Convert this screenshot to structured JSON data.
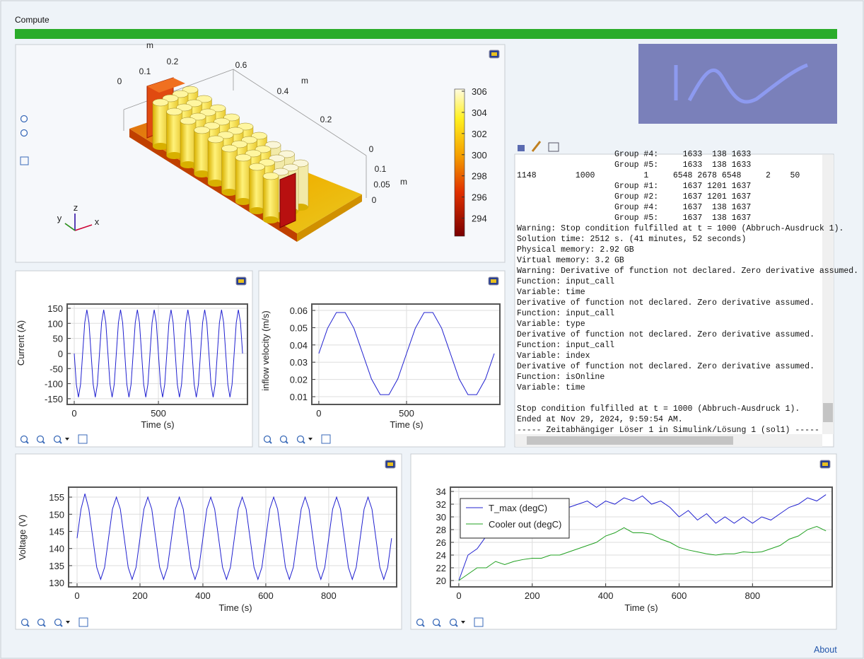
{
  "header": {
    "button": "Compute"
  },
  "model_view": {
    "axis_labels": [
      "m",
      "0",
      "0.1",
      "0.2",
      "0.6",
      "m",
      "0.4",
      "0.2",
      "0",
      "0.1",
      "0.05",
      "m",
      "0"
    ],
    "triad": [
      "z",
      "y",
      "x"
    ],
    "colorbar_range": [
      292.3,
      306.2
    ],
    "colorbar_ticks": [
      294,
      296,
      298,
      300,
      302,
      304,
      306
    ]
  },
  "log": {
    "lines": [
      "                    Group #4:     1633  138 1633",
      "                    Group #5:     1633  138 1633",
      "1148        1000          1     6548 2678 6548     2    50",
      "                    Group #1:     1637 1201 1637",
      "                    Group #2:     1637 1201 1637",
      "                    Group #4:     1637  138 1637",
      "                    Group #5:     1637  138 1637",
      "Warning: Stop condition fulfilled at t = 1000 (Abbruch-Ausdruck 1).",
      "Solution time: 2512 s. (41 minutes, 52 seconds)",
      "Physical memory: 2.92 GB",
      "Virtual memory: 3.2 GB",
      "Warning: Derivative of function not declared. Zero derivative assumed.",
      "Function: input_call",
      "Variable: time",
      "Derivative of function not declared. Zero derivative assumed.",
      "Function: input_call",
      "Variable: type",
      "Derivative of function not declared. Zero derivative assumed.",
      "Function: input_call",
      "Variable: index",
      "Derivative of function not declared. Zero derivative assumed.",
      "Function: isOnline",
      "Variable: time"
    ],
    "summary": [
      "Stop condition fulfilled at t = 1000 (Abbruch-Ausdruck 1).",
      "Ended at Nov 29, 2024, 9:59:54 AM.",
      "----- Zeitabhängiger Löser 1 in Simulink/Lösung 1 (sol1) -----"
    ]
  },
  "chart_data": [
    {
      "type": "line",
      "x_label": "Time (s)",
      "y_label": "Current (A)",
      "grid": true,
      "xlim": [
        -42,
        1029
      ],
      "ylim": [
        -169,
        164
      ],
      "xticks": [
        0,
        500
      ],
      "yticks": [
        -150,
        -100,
        -50,
        0,
        50,
        100,
        150
      ],
      "x": [
        0,
        12.5,
        25,
        37.5,
        50,
        62.5,
        75,
        87.5,
        100,
        112.5,
        125,
        137.5,
        150,
        162.5,
        175,
        187.5,
        200,
        212.5,
        225,
        237.5,
        250,
        262.5,
        275,
        287.5,
        300,
        312.5,
        325,
        337.5,
        350,
        362.5,
        375,
        387.5,
        400,
        412.5,
        425,
        437.5,
        450,
        462.5,
        475,
        487.5,
        500,
        512.5,
        525,
        537.5,
        550,
        562.5,
        575,
        587.5,
        600,
        612.5,
        625,
        637.5,
        650,
        662.5,
        675,
        687.5,
        700,
        712.5,
        725,
        737.5,
        750,
        762.5,
        775,
        787.5,
        800,
        812.5,
        825,
        837.5,
        850,
        862.5,
        875,
        887.5,
        900,
        912.5,
        925,
        937.5,
        950,
        962.5,
        975,
        987.5,
        1000
      ],
      "series": [
        {
          "color": "#2020d0",
          "values": [
            0,
            -102.5,
            -145,
            -102.5,
            0,
            102.5,
            145,
            102.5,
            0,
            -102.5,
            -145,
            -102.5,
            0,
            102.5,
            145,
            102.5,
            0,
            -102.5,
            -145,
            -102.5,
            0,
            102.5,
            145,
            102.5,
            0,
            -102.5,
            -145,
            -102.5,
            0,
            102.5,
            145,
            102.5,
            0,
            -102.5,
            -145,
            -102.5,
            0,
            102.5,
            145,
            102.5,
            0,
            -102.5,
            -145,
            -102.5,
            0,
            102.5,
            145,
            102.5,
            0,
            -102.5,
            -145,
            -102.5,
            0,
            102.5,
            145,
            102.5,
            0,
            -102.5,
            -145,
            -102.5,
            0,
            102.5,
            145,
            102.5,
            0,
            -102.5,
            -145,
            -102.5,
            0,
            102.5,
            145,
            102.5,
            0,
            -102.5,
            -145,
            -102.5,
            0,
            102.5,
            145,
            102.5,
            0
          ]
        }
      ]
    },
    {
      "type": "line",
      "x_label": "Time (s)",
      "y_label": "inflow velocity (m/s)",
      "grid": true,
      "xlim": [
        -40,
        1032
      ],
      "ylim": [
        0.0055,
        0.0637
      ],
      "xticks": [
        0,
        500
      ],
      "yticks": [
        0.01,
        0.02,
        0.03,
        0.04,
        0.05,
        0.06
      ],
      "x": [
        0,
        50,
        100,
        150,
        200,
        250,
        300,
        350,
        400,
        450,
        500,
        550,
        600,
        650,
        700,
        750,
        800,
        850,
        900,
        950,
        1000
      ],
      "series": [
        {
          "color": "#2020d0",
          "values": [
            0.035,
            0.0497,
            0.0588,
            0.0588,
            0.0497,
            0.035,
            0.0203,
            0.0112,
            0.0112,
            0.0203,
            0.035,
            0.0497,
            0.0588,
            0.0588,
            0.0497,
            0.035,
            0.0203,
            0.0112,
            0.0112,
            0.0203,
            0.035
          ]
        }
      ]
    },
    {
      "type": "line",
      "x_label": "Time (s)",
      "y_label": "Voltage (V)",
      "grid": true,
      "xlim": [
        -27,
        1016
      ],
      "ylim": [
        128.8,
        157.9
      ],
      "xticks": [
        0,
        200,
        400,
        600,
        800
      ],
      "yticks": [
        130,
        135,
        140,
        145,
        150,
        155
      ],
      "x": [
        0,
        12.5,
        25,
        37.5,
        50,
        62.5,
        75,
        87.5,
        100,
        112.5,
        125,
        137.5,
        150,
        162.5,
        175,
        187.5,
        200,
        212.5,
        225,
        237.5,
        250,
        262.5,
        275,
        287.5,
        300,
        312.5,
        325,
        337.5,
        350,
        362.5,
        375,
        387.5,
        400,
        412.5,
        425,
        437.5,
        450,
        462.5,
        475,
        487.5,
        500,
        512.5,
        525,
        537.5,
        550,
        562.5,
        575,
        587.5,
        600,
        612.5,
        625,
        637.5,
        650,
        662.5,
        675,
        687.5,
        700,
        712.5,
        725,
        737.5,
        750,
        762.5,
        775,
        787.5,
        800,
        812.5,
        825,
        837.5,
        850,
        862.5,
        875,
        887.5,
        900,
        912.5,
        925,
        937.5,
        950,
        962.5,
        975,
        987.5,
        1000
      ],
      "series": [
        {
          "color": "#2020d0",
          "values": [
            143,
            151.5,
            156,
            151.5,
            143,
            134.5,
            131,
            134.5,
            143,
            151.5,
            155,
            151.5,
            143,
            134.5,
            131,
            134.5,
            143,
            151.5,
            155,
            151.5,
            143,
            134.5,
            131,
            134.5,
            143,
            151.5,
            155,
            151.5,
            143,
            134.5,
            131,
            134.5,
            143,
            151.5,
            155,
            151.5,
            143,
            134.5,
            131,
            134.5,
            143,
            151.5,
            155,
            151.5,
            143,
            134.5,
            131,
            134.5,
            143,
            151.5,
            155,
            151.5,
            143,
            134.5,
            131,
            134.5,
            143,
            151.5,
            155,
            151.5,
            143,
            134.5,
            131,
            134.5,
            143,
            151.5,
            155,
            151.5,
            143,
            134.5,
            131,
            134.5,
            143,
            151.5,
            155,
            151.5,
            143,
            134.5,
            131,
            134.5,
            143
          ]
        }
      ]
    },
    {
      "type": "line",
      "x_label": "Time (s)",
      "grid": true,
      "legend": "upper left",
      "xlim": [
        -23,
        1017
      ],
      "ylim": [
        19,
        34.67
      ],
      "xticks": [
        0,
        200,
        400,
        600,
        800
      ],
      "yticks": [
        20,
        22,
        24,
        26,
        28,
        30,
        32,
        34
      ],
      "x": [
        0,
        25,
        50,
        75,
        100,
        125,
        150,
        175,
        200,
        225,
        250,
        275,
        300,
        325,
        350,
        375,
        400,
        425,
        450,
        475,
        500,
        525,
        550,
        575,
        600,
        625,
        650,
        675,
        700,
        725,
        750,
        775,
        800,
        825,
        850,
        875,
        900,
        925,
        950,
        975,
        1000
      ],
      "series": [
        {
          "name": "T_max (degC)",
          "color": "#2020d0",
          "values": [
            20,
            24,
            25,
            27,
            27.5,
            27,
            29,
            28,
            30,
            30.5,
            30,
            31,
            31.5,
            32,
            32.5,
            31.5,
            32.5,
            32,
            33,
            32.5,
            33.3,
            32,
            32.5,
            31.5,
            30,
            31,
            29.5,
            30.5,
            29,
            30,
            29,
            30,
            29,
            30,
            29.5,
            30.5,
            31.5,
            32,
            33,
            32.5,
            33.5
          ]
        },
        {
          "name": "Cooler out (degC)",
          "color": "#20a020",
          "values": [
            20,
            21,
            22,
            22,
            23,
            22.5,
            23,
            23.3,
            23.5,
            23.5,
            24,
            24,
            24.5,
            25,
            25.5,
            26,
            27,
            27.5,
            28.3,
            27.5,
            27.5,
            27.3,
            26.5,
            26,
            25.2,
            24.8,
            24.5,
            24.2,
            24,
            24.2,
            24.2,
            24.5,
            24.4,
            24.5,
            25,
            25.5,
            26.5,
            27,
            28,
            28.5,
            27.8
          ]
        }
      ]
    }
  ],
  "footer": {
    "link": "About"
  }
}
